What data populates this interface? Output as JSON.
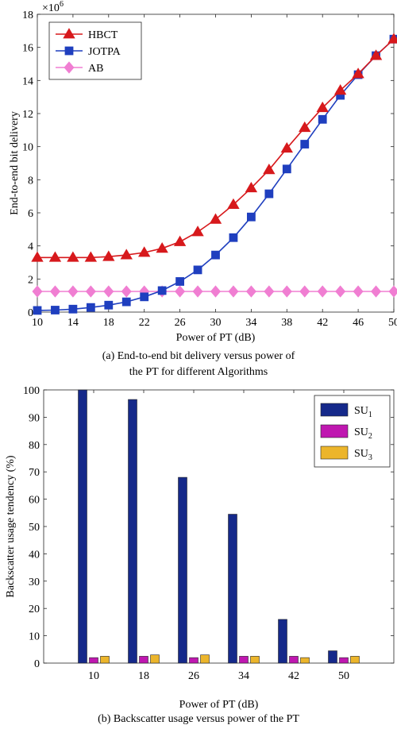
{
  "chart_data": [
    {
      "type": "line",
      "xlabel": "Power of PT (dB)",
      "ylabel": "End-to-end bit delivery",
      "y_multiplier_label": "×10",
      "y_multiplier_exponent": "6",
      "xlim": [
        10,
        50
      ],
      "ylim": [
        0,
        18
      ],
      "xticks": [
        10,
        14,
        18,
        22,
        26,
        30,
        34,
        38,
        42,
        46,
        50
      ],
      "yticks": [
        0,
        2,
        4,
        6,
        8,
        10,
        12,
        14,
        16,
        18
      ],
      "grid": false,
      "legend_position": "top-left",
      "x": [
        10,
        12,
        14,
        16,
        18,
        20,
        22,
        24,
        26,
        28,
        30,
        32,
        34,
        36,
        38,
        40,
        42,
        44,
        46,
        48,
        50
      ],
      "series": [
        {
          "name": "HBCT",
          "color": "#d7191c",
          "marker": "triangle",
          "values": [
            3.3,
            3.3,
            3.3,
            3.3,
            3.35,
            3.45,
            3.6,
            3.85,
            4.25,
            4.85,
            5.6,
            6.5,
            7.5,
            8.6,
            9.9,
            11.15,
            12.35,
            13.4,
            14.4,
            15.5,
            16.5
          ]
        },
        {
          "name": "JOTPA",
          "color": "#1f3fbf",
          "marker": "square",
          "values": [
            0.1,
            0.12,
            0.18,
            0.28,
            0.42,
            0.62,
            0.92,
            1.3,
            1.85,
            2.55,
            3.45,
            4.5,
            5.75,
            7.15,
            8.65,
            10.15,
            11.65,
            13.1,
            14.35,
            15.5,
            16.5
          ]
        },
        {
          "name": "AB",
          "color": "#f07ed2",
          "marker": "diamond",
          "values": [
            1.25,
            1.25,
            1.25,
            1.25,
            1.25,
            1.25,
            1.25,
            1.25,
            1.25,
            1.25,
            1.25,
            1.25,
            1.25,
            1.25,
            1.25,
            1.25,
            1.25,
            1.25,
            1.25,
            1.25,
            1.25
          ]
        }
      ]
    },
    {
      "type": "bar",
      "xlabel": "Power of PT (dB)",
      "ylabel": "Backscatter usage tendency (%)",
      "ylim": [
        0,
        100
      ],
      "yticks": [
        0,
        10,
        20,
        30,
        40,
        50,
        60,
        70,
        80,
        90,
        100
      ],
      "grid": false,
      "legend_position": "top-right",
      "categories": [
        "10",
        "18",
        "26",
        "34",
        "42",
        "50"
      ],
      "series": [
        {
          "name": "SU",
          "subscript": "1",
          "color": "#15298a",
          "values": [
            100,
            96.5,
            68,
            54.5,
            16,
            4.5
          ]
        },
        {
          "name": "SU",
          "subscript": "2",
          "color": "#bf17b0",
          "values": [
            2,
            2.5,
            2,
            2.5,
            2.5,
            2
          ]
        },
        {
          "name": "SU",
          "subscript": "3",
          "color": "#ecb52b",
          "values": [
            2.5,
            3,
            3,
            2.5,
            2,
            2.5
          ]
        }
      ]
    }
  ],
  "captions": {
    "a_line1": "(a) End-to-end bit delivery versus power of",
    "a_line2": "the PT for different Algorithms",
    "b": "(b) Backscatter usage versus power of the PT"
  }
}
